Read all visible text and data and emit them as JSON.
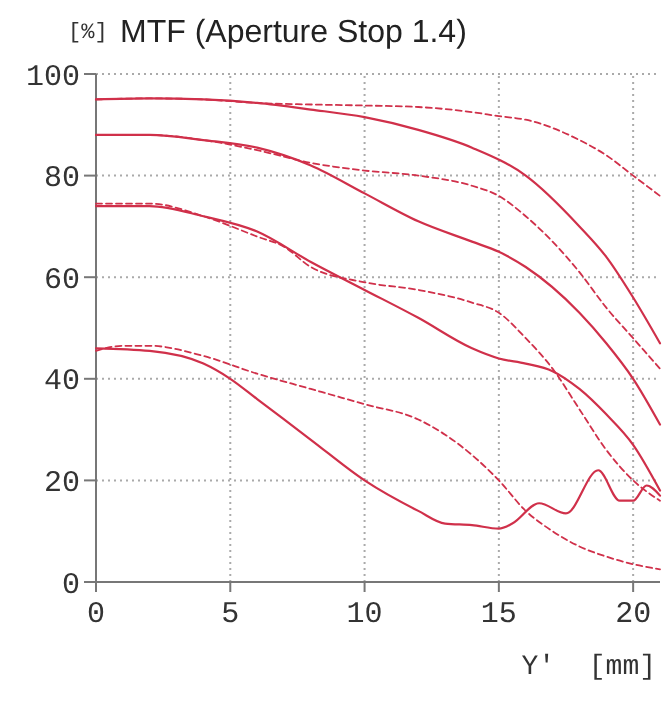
{
  "chart_data": {
    "type": "line",
    "title": "MTF (Aperture Stop 1.4)",
    "ylabel": "[%]",
    "xlabel": "Y'  [mm]",
    "xlim": [
      0,
      21
    ],
    "xticks": [
      0,
      5,
      10,
      15,
      20
    ],
    "ylim": [
      0,
      100
    ],
    "yticks": [
      0,
      20,
      40,
      60,
      80,
      100
    ],
    "grid": true,
    "marker": "none",
    "series": [
      {
        "color": "#d0304a",
        "line_style": "solid",
        "x": [
          0,
          2,
          4,
          6,
          8,
          10,
          12,
          14,
          16,
          18,
          19,
          20,
          21
        ],
        "values": [
          95,
          95.2,
          95,
          94.3,
          93,
          91.5,
          89,
          85.5,
          80,
          70,
          64,
          56,
          47
        ]
      },
      {
        "color": "#d0304a",
        "line_style": "dashed",
        "x": [
          0,
          2,
          4,
          6,
          8,
          10,
          12,
          14,
          15,
          16,
          18,
          19,
          20,
          21
        ],
        "values": [
          95,
          95.2,
          95,
          94.3,
          94,
          93.8,
          93.5,
          92.5,
          91.7,
          91,
          87,
          84,
          80,
          76
        ]
      },
      {
        "color": "#d0304a",
        "line_style": "solid",
        "x": [
          0,
          2,
          4,
          6,
          8,
          10,
          12,
          14,
          15,
          16,
          18,
          19,
          20,
          21
        ],
        "values": [
          88,
          88,
          87,
          85.5,
          82,
          76.5,
          71,
          67,
          65,
          62,
          53,
          47,
          40,
          31
        ]
      },
      {
        "color": "#d0304a",
        "line_style": "dashed",
        "x": [
          0,
          2,
          4,
          6,
          8,
          10,
          12,
          14,
          15,
          16,
          18,
          19,
          20,
          21
        ],
        "values": [
          88,
          88,
          87,
          85,
          82.5,
          81,
          80,
          78,
          76,
          72,
          61,
          54,
          48,
          42
        ]
      },
      {
        "color": "#d0304a",
        "line_style": "solid",
        "x": [
          0,
          2,
          4,
          6,
          8,
          10,
          12,
          14,
          15,
          16,
          17,
          18,
          19,
          20,
          21
        ],
        "values": [
          74,
          74,
          72,
          69,
          63,
          57.5,
          52,
          46,
          44,
          43,
          41.5,
          38,
          33,
          27,
          18
        ]
      },
      {
        "color": "#d0304a",
        "line_style": "dashed",
        "x": [
          0,
          2,
          4,
          6,
          7,
          8,
          10,
          12,
          14,
          15,
          16,
          17,
          18,
          19,
          20,
          21
        ],
        "values": [
          74.5,
          74.5,
          72,
          68,
          66,
          62,
          59,
          57.5,
          55,
          53,
          48,
          42,
          34,
          26,
          20,
          16
        ]
      },
      {
        "color": "#d0304a",
        "line_style": "solid",
        "x": [
          0,
          2,
          4,
          5,
          6,
          8,
          10,
          12,
          13,
          14,
          15,
          15.5,
          16.5,
          17.5,
          18.7,
          19.5,
          20,
          20.5,
          21
        ],
        "values": [
          46,
          45.5,
          43,
          40,
          36,
          28,
          20,
          14,
          11.5,
          11.2,
          10.5,
          11.5,
          15.5,
          13.5,
          22,
          16,
          16,
          19,
          17
        ]
      },
      {
        "color": "#d0304a",
        "line_style": "dashed",
        "x": [
          0,
          1,
          2,
          4,
          6,
          8,
          10,
          12,
          13,
          14,
          15,
          16,
          17,
          18,
          19,
          20,
          21
        ],
        "values": [
          45.5,
          46.5,
          46.5,
          44.5,
          41,
          38,
          35,
          32,
          29,
          25,
          20,
          14,
          10,
          7,
          5,
          3.5,
          2.5
        ]
      }
    ]
  }
}
